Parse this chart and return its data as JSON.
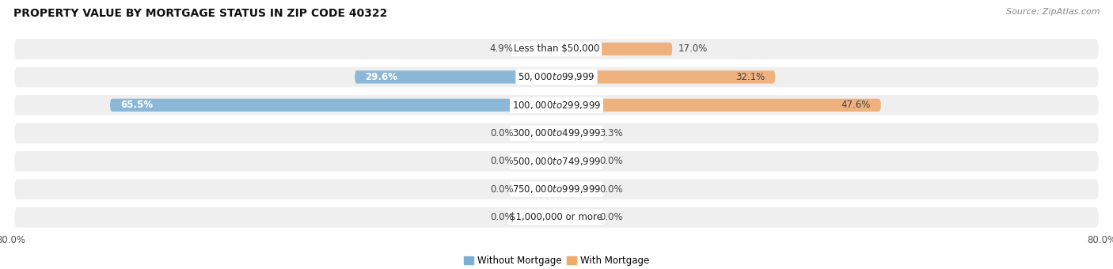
{
  "title": "PROPERTY VALUE BY MORTGAGE STATUS IN ZIP CODE 40322",
  "source": "Source: ZipAtlas.com",
  "categories": [
    "Less than $50,000",
    "$50,000 to $99,999",
    "$100,000 to $299,999",
    "$300,000 to $499,999",
    "$500,000 to $749,999",
    "$750,000 to $999,999",
    "$1,000,000 or more"
  ],
  "without_mortgage": [
    4.9,
    29.6,
    65.5,
    0.0,
    0.0,
    0.0,
    0.0
  ],
  "with_mortgage": [
    17.0,
    32.1,
    47.6,
    3.3,
    0.0,
    0.0,
    0.0
  ],
  "color_without": "#7bafd4",
  "color_with": "#f0a86b",
  "axis_left_label": "80.0%",
  "axis_right_label": "80.0%",
  "xlim": [
    -80,
    80
  ],
  "legend_without": "Without Mortgage",
  "legend_with": "With Mortgage",
  "row_bg_color": "#efefef",
  "row_bg_light": "#f7f7f7",
  "min_bar_width": 5.5,
  "title_fontsize": 10,
  "source_fontsize": 8,
  "bar_label_fontsize": 8.5,
  "category_label_fontsize": 8.5
}
